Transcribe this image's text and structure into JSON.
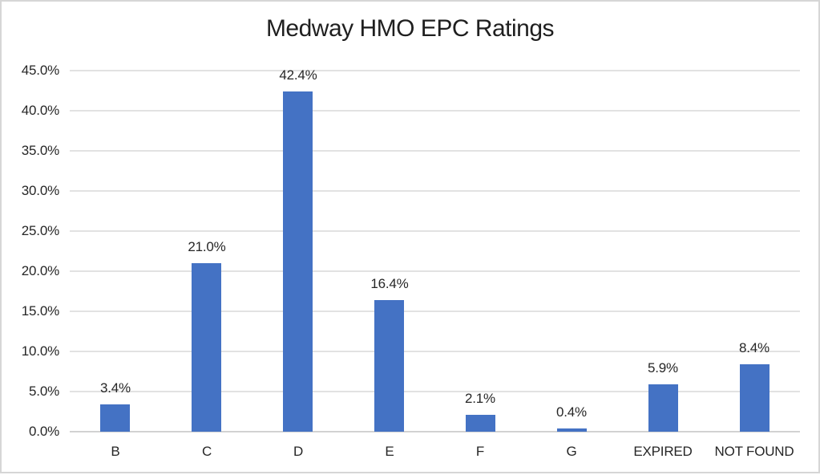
{
  "chart_data": {
    "type": "bar",
    "title": "Medway HMO EPC Ratings",
    "categories": [
      "B",
      "C",
      "D",
      "E",
      "F",
      "G",
      "EXPIRED",
      "NOT FOUND"
    ],
    "values": [
      3.4,
      21.0,
      42.4,
      16.4,
      2.1,
      0.4,
      5.9,
      8.4
    ],
    "data_labels": [
      "3.4%",
      "21.0%",
      "42.4%",
      "16.4%",
      "2.1%",
      "0.4%",
      "5.9%",
      "8.4%"
    ],
    "y_ticks": [
      "45.0%",
      "40.0%",
      "35.0%",
      "30.0%",
      "25.0%",
      "20.0%",
      "15.0%",
      "10.0%",
      "5.0%",
      "0.0%"
    ],
    "ylim": [
      0,
      45
    ],
    "y_step": 5,
    "xlabel": "",
    "ylabel": "",
    "grid": true,
    "legend": "none",
    "colors": {
      "bar": "#4472C4",
      "gridline": "#E2E2E2",
      "axis_line": "#D2D2D2",
      "text": "#262626",
      "frame_border": "#D6D6D6",
      "background": "#FFFFFF"
    }
  }
}
